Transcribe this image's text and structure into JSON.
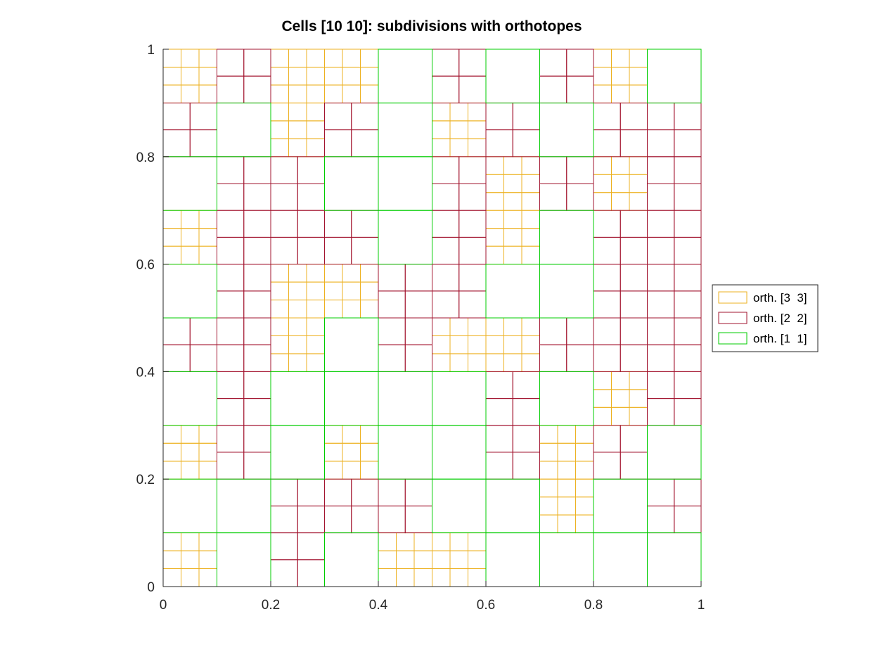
{
  "chart_data": {
    "type": "heatmap",
    "title": "Cells [10 10]: subdivisions with orthotopes",
    "xlabel": "",
    "ylabel": "",
    "xlim": [
      0,
      1
    ],
    "ylim": [
      0,
      1
    ],
    "x_ticks": [
      0,
      0.2,
      0.4,
      0.6,
      0.8,
      1
    ],
    "y_ticks": [
      0,
      0.2,
      0.4,
      0.6,
      0.8,
      1
    ],
    "x_tick_labels": [
      "0",
      "0.2",
      "0.4",
      "0.6",
      "0.8",
      "1"
    ],
    "y_tick_labels": [
      "0",
      "0.2",
      "0.4",
      "0.6",
      "0.8",
      "1"
    ],
    "cells": [
      10,
      10
    ],
    "legend_position": "right",
    "series": [
      {
        "name": "orth. [3  3]",
        "subdivision": 3,
        "color": "#EDB120"
      },
      {
        "name": "orth. [2  2]",
        "subdivision": 2,
        "color": "#A2142F"
      },
      {
        "name": "orth. [1  1]",
        "subdivision": 1,
        "color": "#00CC00"
      }
    ],
    "grid_rows_top_to_bottom": [
      [
        3,
        2,
        3,
        3,
        1,
        2,
        1,
        2,
        3,
        1
      ],
      [
        2,
        1,
        3,
        2,
        1,
        3,
        2,
        1,
        2,
        2
      ],
      [
        1,
        2,
        2,
        1,
        1,
        2,
        3,
        2,
        3,
        2
      ],
      [
        3,
        2,
        2,
        2,
        1,
        2,
        3,
        1,
        2,
        2
      ],
      [
        1,
        2,
        3,
        3,
        2,
        2,
        1,
        1,
        2,
        2
      ],
      [
        2,
        2,
        3,
        1,
        2,
        3,
        3,
        2,
        2,
        2
      ],
      [
        1,
        2,
        1,
        1,
        1,
        1,
        2,
        1,
        3,
        2
      ],
      [
        3,
        2,
        1,
        3,
        1,
        1,
        2,
        3,
        2,
        1
      ],
      [
        1,
        1,
        2,
        2,
        2,
        1,
        1,
        3,
        1,
        2
      ],
      [
        3,
        1,
        2,
        1,
        3,
        3,
        1,
        1,
        1,
        1
      ]
    ]
  }
}
